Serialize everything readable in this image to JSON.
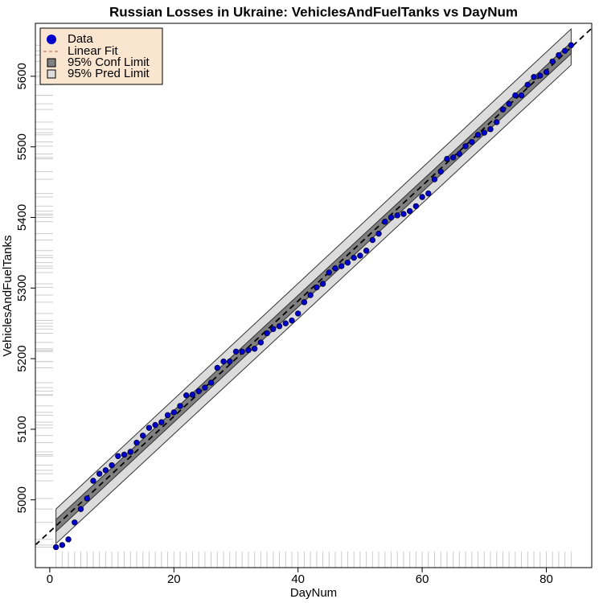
{
  "chart_data": {
    "type": "scatter",
    "title": "Russian Losses in Ukraine: VehiclesAndFuelTanks vs DayNum",
    "x_label": "DayNum",
    "y_label": "VehiclesAndFuelTanks",
    "xlim": [
      -2.32,
      87.32
    ],
    "ylim": [
      4904,
      5675
    ],
    "xticks": [
      0,
      20,
      40,
      60,
      80
    ],
    "yticks": [
      5000,
      5100,
      5200,
      5300,
      5400,
      5500,
      5600
    ],
    "series": [
      {
        "name": "Data",
        "color": "#0000cd",
        "x": [
          1,
          2,
          3,
          4,
          5,
          6,
          7,
          8,
          9,
          10,
          11,
          12,
          13,
          14,
          15,
          16,
          17,
          18,
          19,
          20,
          21,
          22,
          23,
          24,
          25,
          26,
          27,
          28,
          29,
          30,
          31,
          32,
          33,
          34,
          35,
          36,
          37,
          38,
          39,
          40,
          41,
          42,
          43,
          44,
          45,
          46,
          47,
          48,
          49,
          50,
          51,
          52,
          53,
          54,
          55,
          56,
          57,
          58,
          59,
          60,
          61,
          62,
          63,
          64,
          65,
          66,
          67,
          68,
          69,
          70,
          71,
          72,
          73,
          74,
          75,
          76,
          77,
          78,
          79,
          80,
          81,
          82,
          83,
          84
        ],
        "values": [
          4933,
          4936,
          4944,
          4968,
          4987,
          5002,
          5027,
          5037,
          5042,
          5049,
          5062,
          5064,
          5068,
          5081,
          5091,
          5102,
          5106,
          5110,
          5120,
          5124,
          5133,
          5148,
          5149,
          5154,
          5159,
          5166,
          5187,
          5196,
          5196,
          5210,
          5210,
          5212,
          5214,
          5223,
          5236,
          5242,
          5246,
          5250,
          5254,
          5264,
          5280,
          5290,
          5301,
          5306,
          5322,
          5328,
          5331,
          5336,
          5343,
          5346,
          5353,
          5368,
          5377,
          5394,
          5400,
          5403,
          5405,
          5409,
          5416,
          5429,
          5434,
          5454,
          5465,
          5483,
          5485,
          5490,
          5501,
          5507,
          5517,
          5520,
          5525,
          5535,
          5553,
          5561,
          5573,
          5573,
          5588,
          5599,
          5601,
          5606,
          5621,
          5630,
          5636,
          5644
        ]
      }
    ],
    "fit": {
      "name": "Linear Fit",
      "color": "#000000",
      "x": [
        -2.32,
        87.32
      ],
      "values": [
        4936,
        5668
      ]
    },
    "conf_band": {
      "name": "95% Conf Limit",
      "color": "#808080",
      "x": [
        1,
        84
      ],
      "lower": [
        4955,
        5632
      ],
      "upper": [
        4972,
        5648
      ]
    },
    "pred_band": {
      "name": "95% Pred Limit",
      "color": "#dcdcdc",
      "x": [
        1,
        84
      ],
      "lower": [
        4938,
        5616
      ],
      "upper": [
        4987,
        5667
      ]
    },
    "legend_position": "top-left",
    "legend_background": "#fae5d0"
  }
}
